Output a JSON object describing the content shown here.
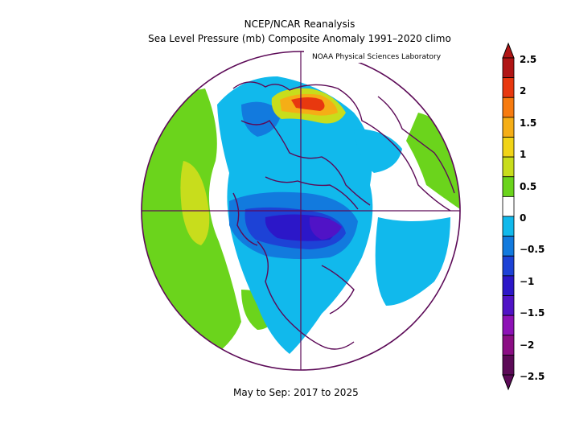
{
  "header": {
    "title": "NCEP/NCAR Reanalysis",
    "subtitle": "Sea Level Pressure (mb) Composite Anomaly 1991–2020 climo",
    "credit": "NOAA Physical Sciences Laboratory"
  },
  "footer": {
    "period": "May to Sep: 2017 to 2025"
  },
  "map": {
    "projection": "polar stereographic",
    "hemisphere": "Northern",
    "variable": "sea level pressure anomaly",
    "units": "mb"
  },
  "colorbar": {
    "labels": [
      "2.5",
      "2",
      "1.5",
      "1",
      "0.5",
      "0",
      "−0.5",
      "−1",
      "−1.5",
      "−2",
      "−2.5"
    ],
    "colors": [
      "#b01515",
      "#e8380f",
      "#f77b0f",
      "#f5ae16",
      "#f1d417",
      "#c8dd1c",
      "#6bd41c",
      "#ffffff",
      "#11b9ec",
      "#127ade",
      "#1d42d6",
      "#2c17c8",
      "#5013c6",
      "#8d12b6",
      "#8b0e84",
      "#5c0a57"
    ]
  }
}
